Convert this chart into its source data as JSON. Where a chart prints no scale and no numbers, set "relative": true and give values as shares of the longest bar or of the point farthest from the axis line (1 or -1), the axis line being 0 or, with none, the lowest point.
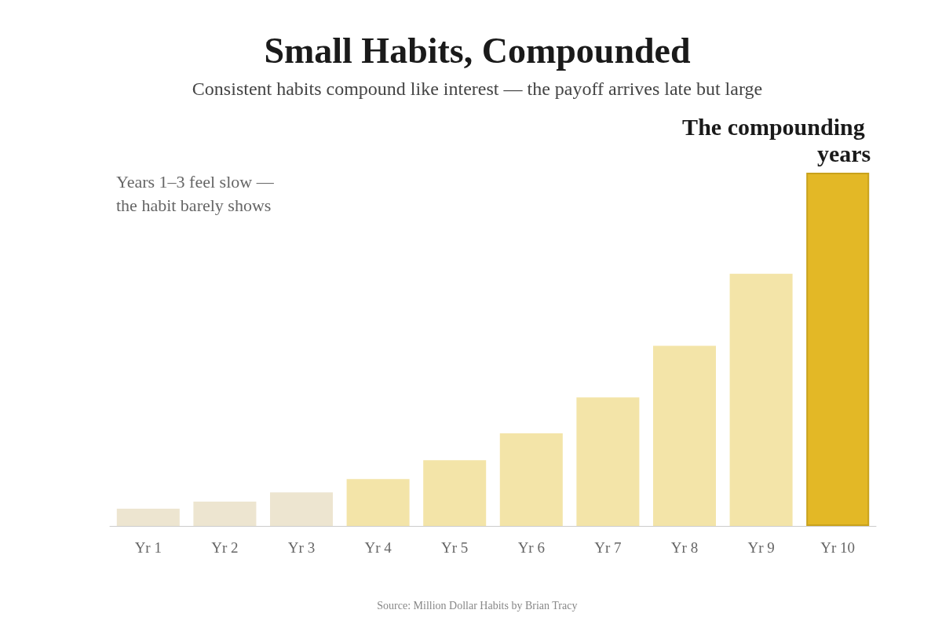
{
  "chart_data": {
    "type": "bar",
    "title": "Small Habits, Compounded",
    "subtitle": "Consistent habits compound like interest — the payoff arrives late but large",
    "relative": true,
    "categories": [
      "Yr 1",
      "Yr 2",
      "Yr 3",
      "Yr 4",
      "Yr 5",
      "Yr 6",
      "Yr 7",
      "Yr 8",
      "Yr 9",
      "Yr 10"
    ],
    "values": [
      0.049,
      0.069,
      0.095,
      0.133,
      0.186,
      0.262,
      0.364,
      0.51,
      0.714,
      1
    ],
    "colors": [
      "#ede5d0",
      "#ede5d0",
      "#ede5d0",
      "#f3e4a8",
      "#f3e4a8",
      "#f3e4a8",
      "#f3e4a8",
      "#f3e4a8",
      "#f3e4a8",
      "#e3b826"
    ],
    "annotations": [
      "Years 1–3 feel slow —\nthe habit barely shows",
      {
        "text": "The compounding years",
        "x": "Yr 10",
        "y": 1
      },
      "Source: Million Dollar Habits by Brian Tracy"
    ]
  }
}
